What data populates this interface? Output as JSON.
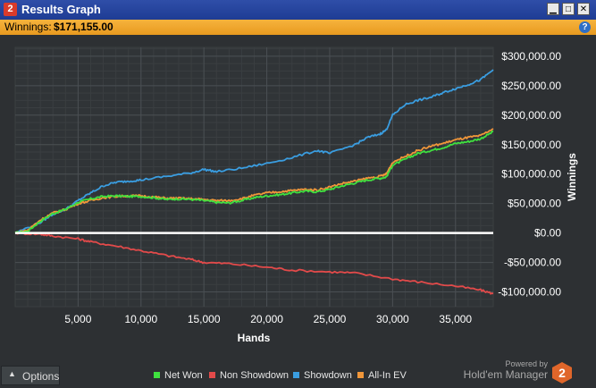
{
  "window": {
    "title": "Results Graph",
    "app_badge": "2",
    "buttons": {
      "minimize": "▁",
      "maximize": "□",
      "close": "✕"
    }
  },
  "summary": {
    "label": "Winnings:",
    "value": "$171,155.00"
  },
  "options": {
    "label": "Options"
  },
  "brand": {
    "powered_by": "Powered by",
    "name": "Hold'em Manager",
    "logo_text": "2"
  },
  "chart_data": {
    "type": "line",
    "xlabel": "Hands",
    "ylabel": "Winnings",
    "xlim": [
      0,
      38000
    ],
    "ylim": [
      -125000,
      315000
    ],
    "x_ticks": [
      5000,
      10000,
      15000,
      20000,
      25000,
      30000,
      35000
    ],
    "x_tick_labels": [
      "5,000",
      "10,000",
      "15,000",
      "20,000",
      "25,000",
      "30,000",
      "35,000"
    ],
    "y_ticks": [
      300000,
      250000,
      200000,
      150000,
      100000,
      50000,
      0,
      -50000,
      -100000
    ],
    "y_tick_labels": [
      "$300,000.00",
      "$250,000.00",
      "$200,000.00",
      "$150,000.00",
      "$100,000.00",
      "$50,000.00",
      "$0.00",
      "-$50,000.00",
      "-$100,000.00"
    ],
    "grid": true,
    "legend_position": "bottom",
    "series": [
      {
        "name": "Net Won",
        "color": "#3fe03f",
        "x": [
          0,
          1000,
          2000,
          3000,
          4000,
          5000,
          6000,
          7000,
          8000,
          9000,
          10000,
          11000,
          12000,
          13000,
          14000,
          15000,
          16000,
          17000,
          18000,
          19000,
          20000,
          21000,
          22000,
          23000,
          24000,
          25000,
          26000,
          27000,
          28000,
          29000,
          29500,
          30000,
          31000,
          32000,
          33000,
          34000,
          35000,
          36000,
          37000,
          38000
        ],
        "values": [
          0,
          3000,
          20000,
          33000,
          40000,
          52000,
          58000,
          62000,
          63000,
          62000,
          62000,
          60000,
          57000,
          58000,
          57000,
          55000,
          52000,
          51000,
          55000,
          60000,
          63000,
          65000,
          68000,
          71000,
          70000,
          74000,
          80000,
          85000,
          90000,
          93000,
          95000,
          115000,
          125000,
          135000,
          140000,
          145000,
          152000,
          155000,
          160000,
          172000
        ]
      },
      {
        "name": "Non Showdown",
        "color": "#e24a4a",
        "x": [
          0,
          2000,
          3000,
          5000,
          6000,
          8000,
          10000,
          12000,
          14000,
          15000,
          17000,
          20000,
          22000,
          25000,
          27000,
          30000,
          32000,
          35000,
          37000,
          38000
        ],
        "values": [
          0,
          -2000,
          -5000,
          -10000,
          -15000,
          -22000,
          -30000,
          -38000,
          -45000,
          -50000,
          -52000,
          -58000,
          -63000,
          -66000,
          -68000,
          -78000,
          -83000,
          -90000,
          -97000,
          -103000
        ]
      },
      {
        "name": "Showdown",
        "color": "#3a9de0",
        "x": [
          0,
          2000,
          3000,
          4000,
          5000,
          6000,
          7000,
          8000,
          9000,
          10000,
          12000,
          14000,
          15000,
          16000,
          18000,
          20000,
          22000,
          24000,
          25000,
          27000,
          28000,
          29000,
          29500,
          30000,
          31000,
          32000,
          33000,
          34000,
          35000,
          36000,
          37000,
          38000
        ],
        "values": [
          0,
          18000,
          32000,
          40000,
          55000,
          68000,
          80000,
          86000,
          88000,
          90000,
          96000,
          102000,
          108000,
          104000,
          110000,
          118000,
          128000,
          140000,
          135000,
          150000,
          162000,
          168000,
          175000,
          200000,
          218000,
          225000,
          230000,
          238000,
          245000,
          252000,
          260000,
          277000
        ]
      },
      {
        "name": "All-In EV",
        "color": "#f0963a",
        "x": [
          0,
          1000,
          2000,
          3000,
          4000,
          5000,
          6000,
          7000,
          8000,
          9000,
          10000,
          11000,
          12000,
          13000,
          14000,
          15000,
          16000,
          17000,
          18000,
          19000,
          20000,
          21000,
          22000,
          23000,
          24000,
          25000,
          26000,
          27000,
          28000,
          29000,
          29500,
          30000,
          31000,
          32000,
          33000,
          34000,
          35000,
          36000,
          37000,
          38000
        ],
        "values": [
          0,
          5000,
          22000,
          34000,
          40000,
          50000,
          55000,
          60000,
          62000,
          63000,
          63000,
          61000,
          59000,
          59000,
          58000,
          57000,
          55000,
          55000,
          58000,
          64000,
          68000,
          70000,
          72000,
          74000,
          73000,
          78000,
          84000,
          88000,
          93000,
          96000,
          100000,
          120000,
          130000,
          140000,
          147000,
          152000,
          158000,
          162000,
          165000,
          177000
        ]
      }
    ]
  }
}
